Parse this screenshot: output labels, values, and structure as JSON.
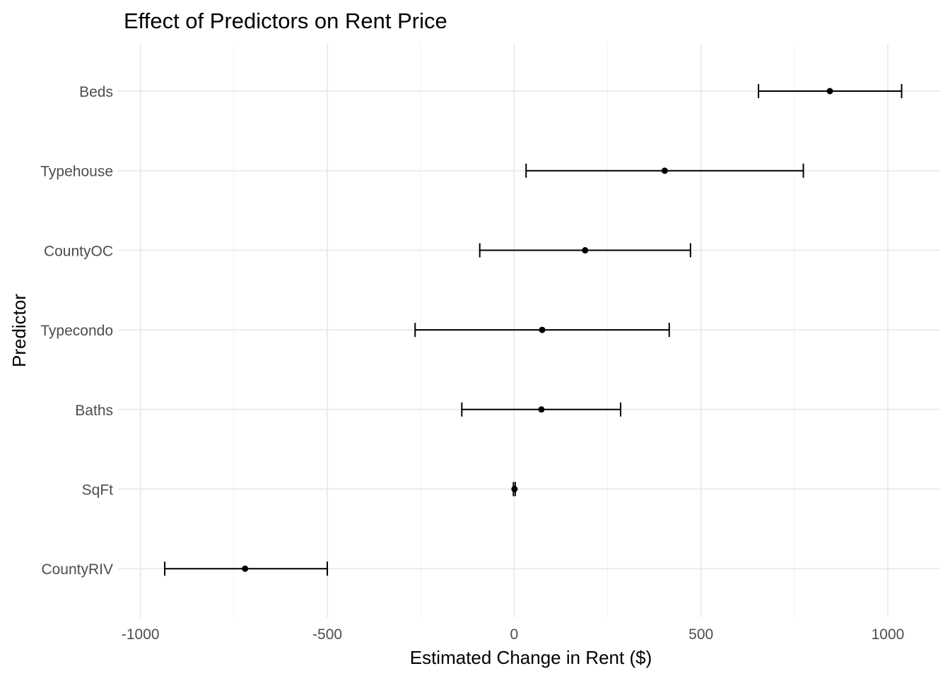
{
  "chart_data": {
    "type": "scatter",
    "title": "Effect of Predictors on Rent Price",
    "xlabel": "Estimated Change in Rent ($)",
    "ylabel": "Predictor",
    "xlim": [
      -1060,
      1140
    ],
    "x_ticks": [
      -1000,
      -500,
      0,
      500,
      1000
    ],
    "x_tick_labels": [
      "-1000",
      "-500",
      "0",
      "500",
      "1000"
    ],
    "grid": true,
    "legend": "none",
    "categories": [
      "Beds",
      "Typehouse",
      "CountyOC",
      "Typecondo",
      "Baths",
      "SqFt",
      "CountyRIV"
    ],
    "estimate": [
      845,
      403,
      190,
      75,
      73,
      1,
      -720
    ],
    "ci_low": [
      654,
      32,
      -92,
      -265,
      -140,
      -2,
      -935
    ],
    "ci_high": [
      1037,
      774,
      472,
      415,
      285,
      3,
      -500
    ]
  }
}
